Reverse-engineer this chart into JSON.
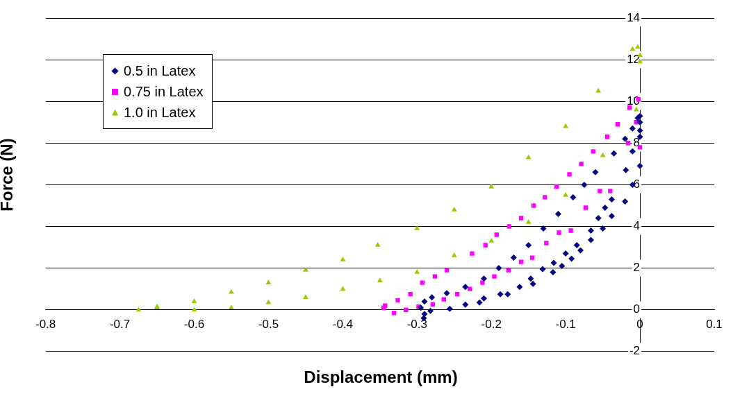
{
  "chart_data": {
    "type": "scatter",
    "xlabel": "Displacement (mm)",
    "ylabel": "Force (N)",
    "xlim": [
      -0.8,
      0.1
    ],
    "xticks": [
      -0.8,
      -0.7,
      -0.6,
      -0.5,
      -0.4,
      -0.3,
      -0.2,
      -0.1,
      0,
      0.1
    ],
    "ylim": [
      -2,
      14
    ],
    "yticks": [
      -2,
      0,
      2,
      4,
      6,
      8,
      10,
      12,
      14
    ],
    "grid": "y",
    "legend": "top left",
    "series": [
      {
        "name": "0.5 in Latex",
        "color": "#000080",
        "marker": "diamond",
        "x": [
          -0.295,
          -0.29,
          -0.28,
          -0.26,
          -0.235,
          -0.21,
          -0.19,
          -0.17,
          -0.15,
          -0.13,
          -0.11,
          -0.09,
          -0.075,
          -0.06,
          -0.035,
          -0.02,
          -0.01,
          -0.003,
          0,
          0,
          0,
          0,
          0,
          -0.01,
          -0.01,
          -0.019,
          -0.02,
          -0.038,
          -0.038,
          -0.047,
          -0.05,
          -0.056,
          -0.066,
          -0.066,
          -0.08,
          -0.085,
          -0.092,
          -0.1,
          -0.105,
          -0.116,
          -0.117,
          -0.131,
          -0.144,
          -0.147,
          -0.162,
          -0.178,
          -0.188,
          -0.21,
          -0.216,
          -0.235,
          -0.256,
          -0.282,
          -0.291,
          -0.29
        ],
        "values": [
          0.1,
          0.4,
          0.6,
          0.8,
          1.1,
          1.5,
          2.0,
          2.5,
          3.1,
          3.9,
          4.6,
          5.4,
          6.0,
          6.6,
          7.5,
          8.2,
          8.7,
          9.2,
          9.3,
          9.0,
          8.6,
          8.3,
          6.9,
          7.6,
          6.0,
          6.7,
          5.2,
          5.3,
          4.5,
          4.9,
          3.9,
          4.4,
          3.8,
          3.35,
          2.85,
          3.1,
          2.45,
          2.7,
          2.1,
          2.25,
          1.8,
          1.95,
          1.25,
          1.5,
          1.1,
          0.75,
          0.75,
          0.55,
          0.35,
          0.25,
          0.05,
          -0.05,
          -0.4,
          -0.2
        ]
      },
      {
        "name": "0.75 in Latex",
        "color": "#ff00ff",
        "marker": "square",
        "x": [
          -0.343,
          -0.326,
          -0.309,
          -0.293,
          -0.276,
          -0.26,
          -0.226,
          -0.208,
          -0.193,
          -0.176,
          -0.16,
          -0.143,
          -0.128,
          -0.112,
          -0.095,
          -0.079,
          -0.063,
          -0.044,
          -0.03,
          -0.014,
          -0.002,
          -0.005,
          -0.016,
          0,
          -0.04,
          -0.054,
          -0.073,
          -0.093,
          -0.109,
          -0.126,
          -0.145,
          -0.16,
          -0.177,
          -0.196,
          -0.212,
          -0.229,
          -0.246,
          -0.264,
          -0.279,
          -0.298,
          -0.315,
          -0.331,
          -0.345
        ],
        "values": [
          0.2,
          0.45,
          0.75,
          1.3,
          1.6,
          1.9,
          2.7,
          3.1,
          3.6,
          4.0,
          4.4,
          5.0,
          5.4,
          5.9,
          6.5,
          7.0,
          7.6,
          8.3,
          8.9,
          9.7,
          10.1,
          9.0,
          8.0,
          7.8,
          5.7,
          5.7,
          4.9,
          3.8,
          3.7,
          3.2,
          2.5,
          2.3,
          1.9,
          1.6,
          1.3,
          1.0,
          0.75,
          0.5,
          0.25,
          0.15,
          0,
          -0.15,
          0.1
        ]
      },
      {
        "name": "1.0 in Latex",
        "color": "#99cc00",
        "marker": "triangle",
        "x": [
          -0.675,
          -0.65,
          -0.6,
          -0.55,
          -0.5,
          -0.45,
          -0.4,
          -0.35,
          -0.3,
          -0.25,
          -0.2,
          -0.15,
          -0.1,
          -0.05,
          -0.005,
          -0.65,
          -0.6,
          -0.55,
          -0.5,
          -0.45,
          -0.4,
          -0.353,
          -0.3,
          -0.25,
          -0.2,
          -0.15,
          -0.1,
          -0.056,
          -0.01,
          -0.003,
          0,
          0
        ],
        "values": [
          0,
          0.1,
          0,
          0.1,
          0.35,
          0.6,
          1.0,
          1.4,
          1.8,
          2.6,
          3.3,
          4.2,
          5.5,
          7.4,
          9.6,
          0.15,
          0.4,
          0.85,
          1.3,
          1.9,
          2.4,
          3.1,
          3.9,
          4.8,
          5.9,
          7.3,
          8.8,
          10.5,
          12.5,
          12.6,
          11.9,
          12.2
        ]
      }
    ]
  }
}
